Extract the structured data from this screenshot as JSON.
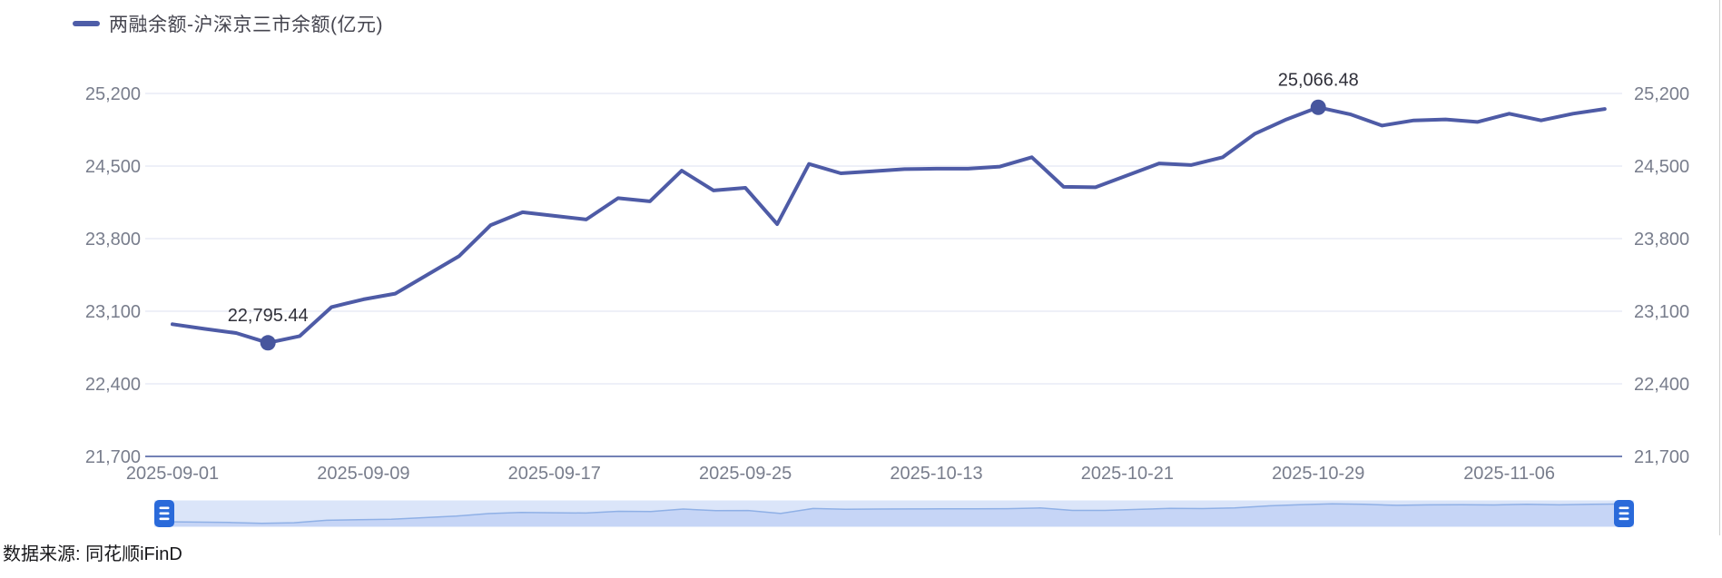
{
  "legend": {
    "label": "两融余额-沪深京三市余额(亿元)"
  },
  "source": {
    "text": "数据来源: 同花顺iFinD"
  },
  "colors": {
    "line": "#4e5ba6",
    "dot": "#47569e",
    "gridline": "#e9ecf6",
    "axis_line": "#7381b5",
    "tick_label": "#787d8c",
    "point_label": "#30303a",
    "legend_marker": "#4e5da8",
    "slider_track": "#dbe5f9",
    "slider_line": "#8fb0e6",
    "slider_fill": "#c6d5f6",
    "slider_handle": "#2a6ada"
  },
  "chart_data": {
    "type": "line",
    "series_name": "两融余额-沪深京三市余额(亿元)",
    "x": [
      "2025-09-01",
      "2025-09-02",
      "2025-09-03",
      "2025-09-04",
      "2025-09-05",
      "2025-09-08",
      "2025-09-09",
      "2025-09-10",
      "2025-09-11",
      "2025-09-12",
      "2025-09-15",
      "2025-09-16",
      "2025-09-17",
      "2025-09-18",
      "2025-09-19",
      "2025-09-22",
      "2025-09-23",
      "2025-09-24",
      "2025-09-25",
      "2025-09-26",
      "2025-09-29",
      "2025-09-30",
      "2025-10-09",
      "2025-10-10",
      "2025-10-13",
      "2025-10-14",
      "2025-10-15",
      "2025-10-16",
      "2025-10-17",
      "2025-10-20",
      "2025-10-21",
      "2025-10-22",
      "2025-10-23",
      "2025-10-24",
      "2025-10-27",
      "2025-10-28",
      "2025-10-29",
      "2025-10-30",
      "2025-10-31",
      "2025-11-03",
      "2025-11-04",
      "2025-11-05",
      "2025-11-06",
      "2025-11-07",
      "2025-11-10",
      "2025-11-11"
    ],
    "values": [
      22975,
      22930,
      22890,
      22795.44,
      22860,
      23140,
      23215,
      23270,
      23450,
      23630,
      23930,
      24055,
      24020,
      23985,
      24190,
      24160,
      24455,
      24265,
      24290,
      23940,
      24520,
      24430,
      24450,
      24470,
      24475,
      24475,
      24495,
      24585,
      24300,
      24295,
      24410,
      24525,
      24510,
      24585,
      24810,
      24950,
      25066.48,
      25000,
      24890,
      24940,
      24950,
      24925,
      25005,
      24940,
      25005,
      25050
    ],
    "ylim": [
      21700,
      25200
    ],
    "yticks": [
      25200,
      24500,
      23800,
      23100,
      22400,
      21700
    ],
    "ytick_labels": [
      "25,200",
      "24,500",
      "23,800",
      "23,100",
      "22,400",
      "21,700"
    ],
    "y_axis_sides": [
      "left",
      "right"
    ],
    "xtick_indices": [
      0,
      6,
      12,
      18,
      24,
      30,
      36,
      42
    ],
    "xtick_labels": [
      "2025-09-01",
      "2025-09-09",
      "2025-09-17",
      "2025-09-25",
      "2025-10-13",
      "2025-10-21",
      "2025-10-29",
      "2025-11-06"
    ],
    "point_labels": [
      {
        "index": 3,
        "text": "22,795.44"
      },
      {
        "index": 36,
        "text": "25,066.48"
      }
    ],
    "grid": true,
    "legend_position": "top-left",
    "data_zoom_slider": true
  }
}
